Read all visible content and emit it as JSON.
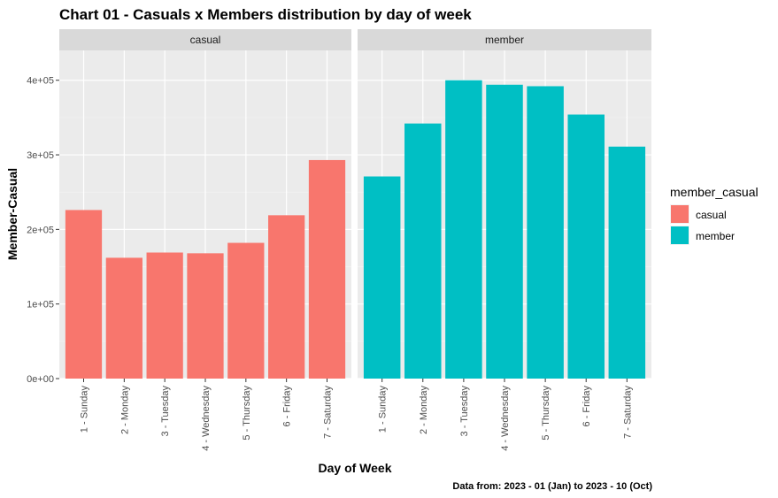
{
  "chart_data": {
    "type": "bar",
    "title": "Chart 01 - Casuals x Members distribution by day of week",
    "xlabel": "Day of Week",
    "ylabel": "Member-Casual",
    "caption": "Data from: 2023 - 01 (Jan)  to  2023 - 10 (Oct)",
    "categories": [
      "1 - Sunday",
      "2 - Monday",
      "3 - Tuesday",
      "4 - Wednesday",
      "5 - Thursday",
      "6 - Friday",
      "7 - Saturday"
    ],
    "ylim": [
      0,
      440000
    ],
    "yticks": [
      0,
      100000,
      200000,
      300000,
      400000
    ],
    "ytick_labels": [
      "0e+00",
      "1e+05",
      "2e+05",
      "3e+05",
      "4e+05"
    ],
    "grid": true,
    "legend": {
      "title": "member_casual",
      "position": "right"
    },
    "panels": [
      {
        "name": "casual",
        "color": "#F8766D",
        "values": [
          226000,
          162000,
          169000,
          168000,
          182000,
          219000,
          293000
        ]
      },
      {
        "name": "member",
        "color": "#00BFC4",
        "values": [
          271000,
          342000,
          400000,
          394000,
          392000,
          354000,
          311000
        ]
      }
    ]
  }
}
